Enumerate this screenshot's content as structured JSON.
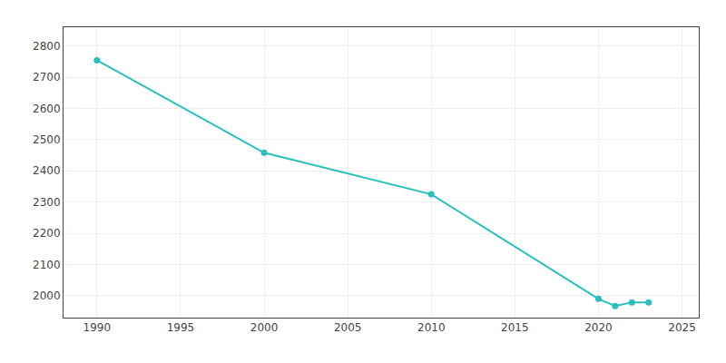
{
  "chart_data": {
    "type": "line",
    "x": [
      1990,
      2000,
      2010,
      2020,
      2021,
      2022,
      2023
    ],
    "values": [
      2754,
      2458,
      2325,
      1990,
      1967,
      1979,
      1979
    ],
    "color": "#2abfbf",
    "marker": "circle",
    "xlim": [
      1988,
      2026
    ],
    "ylim": [
      1930,
      2860
    ],
    "xticks": [
      1990,
      1995,
      2000,
      2005,
      2010,
      2015,
      2020,
      2025
    ],
    "yticks": [
      2000,
      2100,
      2200,
      2300,
      2400,
      2500,
      2600,
      2700,
      2800
    ],
    "grid": true
  }
}
